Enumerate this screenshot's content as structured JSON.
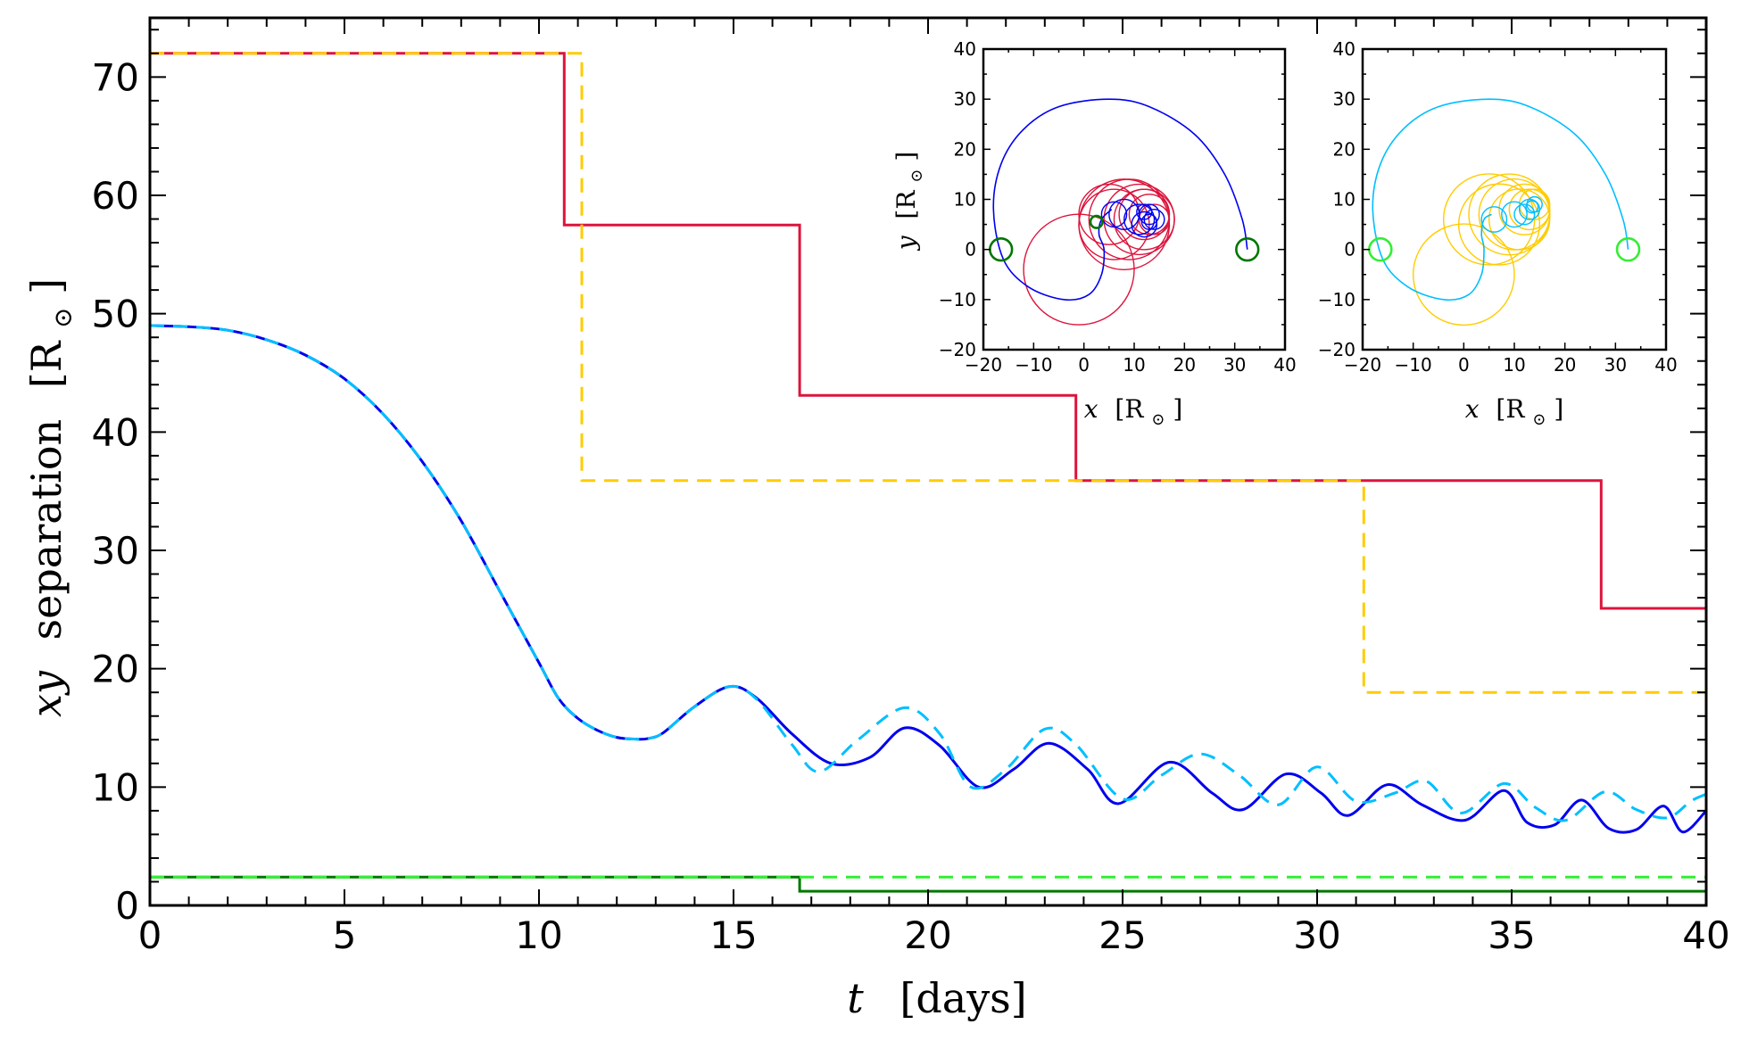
{
  "chart_data": {
    "main": {
      "type": "line",
      "xlabel": {
        "var": "t",
        "unit": "[days]"
      },
      "ylabel": {
        "var": "xy",
        "text": "separation",
        "unit": "[R",
        "sub": "⊙",
        "close": "]"
      },
      "xlim": [
        0,
        40
      ],
      "ylim": [
        0,
        75
      ],
      "xticks": [
        0,
        5,
        10,
        15,
        20,
        25,
        30,
        35,
        40
      ],
      "yticks": [
        0,
        10,
        20,
        30,
        40,
        50,
        60,
        70
      ],
      "colors": {
        "crimson": "#dc143c",
        "gold": "#ffcc00",
        "blue": "#0000ee",
        "cyan": "#00bfff",
        "darkgreen": "#007700",
        "lime": "#33ee33"
      },
      "step_series": [
        {
          "color": "#dc143c",
          "dashed": false,
          "x": [
            0,
            10.65,
            10.65,
            16.7,
            16.7,
            23.8,
            23.8,
            37.3,
            37.3,
            40
          ],
          "y": [
            72,
            72,
            57.5,
            57.5,
            43.1,
            43.1,
            35.9,
            35.9,
            25.1,
            25.1
          ]
        },
        {
          "color": "#ffcc00",
          "dashed": true,
          "x": [
            0,
            11.1,
            11.1,
            31.2,
            31.2,
            40
          ],
          "y": [
            72,
            72,
            35.9,
            35.9,
            18,
            18
          ]
        },
        {
          "color": "#007700",
          "dashed": false,
          "x": [
            0,
            16.7,
            16.7,
            40
          ],
          "y": [
            2.4,
            2.4,
            1.2,
            1.2
          ]
        },
        {
          "color": "#33ee33",
          "dashed": true,
          "x": [
            0,
            40
          ],
          "y": [
            2.4,
            2.4
          ]
        }
      ],
      "separation_series": [
        {
          "color": "#0000ee",
          "dashed": false,
          "x": [
            0,
            1,
            2,
            3,
            4,
            5,
            6,
            7,
            8,
            9,
            10,
            10.5,
            11,
            11.5,
            12,
            12.5,
            12.8,
            13.2,
            14,
            14.9,
            15.6,
            16.5,
            17.5,
            18.5,
            19.4,
            20.3,
            21.3,
            22.2,
            23.1,
            24.1,
            24.9,
            26.2,
            27.3,
            28.1,
            29.2,
            30.1,
            30.8,
            31.8,
            32.7,
            33.8,
            34.8,
            35.4,
            36.1,
            36.8,
            37.5,
            38.2,
            38.9,
            39.4,
            40
          ],
          "y": [
            49,
            48.9,
            48.6,
            47.8,
            46.5,
            44.5,
            41.5,
            37.5,
            32.5,
            26.5,
            20.5,
            17.5,
            15.8,
            14.8,
            14.2,
            14.05,
            14.1,
            14.6,
            16.8,
            18.5,
            17.5,
            14.5,
            12,
            12.5,
            15,
            13.5,
            10,
            11.5,
            13.7,
            11.5,
            8.6,
            12.1,
            9.5,
            8.1,
            11.1,
            9.5,
            7.6,
            10.2,
            8.5,
            7.2,
            9.7,
            7,
            6.8,
            8.9,
            6.5,
            6.4,
            8.4,
            6.2,
            8
          ]
        },
        {
          "color": "#00bfff",
          "dashed": true,
          "x": [
            0,
            1,
            2,
            3,
            4,
            5,
            6,
            7,
            8,
            9,
            10,
            10.5,
            11,
            11.5,
            12,
            12.5,
            12.8,
            13.2,
            14,
            14.9,
            15.6,
            16.5,
            17.2,
            18.2,
            19.4,
            20.3,
            21.1,
            22,
            23,
            23.8,
            25,
            26,
            27,
            28,
            29,
            30,
            31,
            32,
            32.8,
            33.7,
            34.8,
            35.6,
            36.4,
            37.4,
            38.2,
            39,
            39.6,
            40
          ],
          "y": [
            49,
            48.9,
            48.6,
            47.8,
            46.5,
            44.5,
            41.5,
            37.5,
            32.5,
            26.5,
            20.5,
            17.5,
            15.8,
            14.8,
            14.2,
            14.05,
            14.1,
            14.6,
            16.8,
            18.5,
            17.4,
            13.6,
            11.3,
            14,
            16.7,
            14.5,
            10,
            11.5,
            14.9,
            13.6,
            9,
            11,
            12.8,
            11,
            8.5,
            11.7,
            8.8,
            9.5,
            10.5,
            7.8,
            10.3,
            8.3,
            7.2,
            9.6,
            8.1,
            7.4,
            8.8,
            9.4
          ]
        }
      ]
    },
    "insets": [
      {
        "type": "line",
        "xlabel": {
          "var": "x",
          "unit": "[R",
          "sub": "⊙",
          "close": "]"
        },
        "ylabel": {
          "var": "y",
          "unit": "[R",
          "sub": "⊙",
          "close": "]"
        },
        "xlim": [
          -20,
          40
        ],
        "ylim": [
          -20,
          40
        ],
        "xticks": [
          -20,
          -10,
          0,
          10,
          20,
          30,
          40
        ],
        "yticks": [
          -20,
          -10,
          0,
          10,
          20,
          30,
          40
        ],
        "colors": {
          "orbit_a": "#dc143c",
          "orbit_b": "#0000ee",
          "marker": "#007700"
        },
        "circles_a": [
          {
            "cx": 9,
            "cy": 6,
            "r": 8
          },
          {
            "cx": 5,
            "cy": 7,
            "r": 6
          },
          {
            "cx": -1,
            "cy": -4,
            "r": 11
          },
          {
            "cx": 8,
            "cy": 5,
            "r": 9
          },
          {
            "cx": 12,
            "cy": 7,
            "r": 5
          },
          {
            "cx": 12,
            "cy": 6,
            "r": 6
          },
          {
            "cx": 13,
            "cy": 7,
            "r": 4
          },
          {
            "cx": 11,
            "cy": 6,
            "r": 7
          },
          {
            "cx": 14,
            "cy": 6,
            "r": 3
          },
          {
            "cx": 6,
            "cy": 5,
            "r": 7
          }
        ],
        "circles_b": [
          {
            "cx": 8,
            "cy": 7,
            "r": 3
          },
          {
            "cx": 11,
            "cy": 6,
            "r": 3
          },
          {
            "cx": 13,
            "cy": 7,
            "r": 2
          },
          {
            "cx": 12,
            "cy": 5,
            "r": 2.5
          },
          {
            "cx": 14,
            "cy": 6,
            "r": 2
          },
          {
            "cx": 13,
            "cy": 5.5,
            "r": 1.5
          },
          {
            "cx": 6,
            "cy": 7,
            "r": 2.5
          },
          {
            "cx": 12,
            "cy": 7.5,
            "r": 1.5
          }
        ],
        "spiral_b": {
          "x": [
            32.5,
            31.5,
            28,
            22,
            13,
            5,
            -5,
            -12,
            -16.5,
            -18,
            -16,
            -11,
            -4,
            1,
            3.5,
            4,
            3,
            3.5,
            5.5
          ],
          "y": [
            0,
            6,
            15,
            23,
            28.5,
            30,
            28.5,
            24,
            17,
            8,
            -2,
            -7.5,
            -10,
            -9,
            -5,
            0,
            3,
            6,
            8
          ]
        },
        "markers": [
          {
            "x": -16.5,
            "y": 0,
            "r": 2.2
          },
          {
            "x": 32.5,
            "y": 0,
            "r": 2.2
          },
          {
            "x": 2.5,
            "y": 5.5,
            "r": 1.2
          }
        ]
      },
      {
        "type": "line",
        "xlabel": {
          "var": "x",
          "unit": "[R",
          "sub": "⊙",
          "close": "]"
        },
        "ylabel": {
          "var": "",
          "unit": "",
          "sub": "",
          "close": ""
        },
        "xlim": [
          -20,
          40
        ],
        "ylim": [
          -20,
          40
        ],
        "xticks": [
          -20,
          -10,
          0,
          10,
          20,
          30,
          40
        ],
        "yticks": [
          -20,
          -10,
          0,
          10,
          20,
          30,
          40
        ],
        "colors": {
          "orbit_a": "#ffcc00",
          "orbit_b": "#00bfff",
          "marker": "#33ee33"
        },
        "circles_a": [
          {
            "cx": 9,
            "cy": 7,
            "r": 8
          },
          {
            "cx": 5,
            "cy": 6,
            "r": 9
          },
          {
            "cx": 0,
            "cy": -5,
            "r": 10
          },
          {
            "cx": 10,
            "cy": 7,
            "r": 7
          },
          {
            "cx": 12,
            "cy": 8,
            "r": 5
          },
          {
            "cx": 13,
            "cy": 8,
            "r": 4
          },
          {
            "cx": 11,
            "cy": 6,
            "r": 6
          },
          {
            "cx": 14,
            "cy": 9,
            "r": 3
          },
          {
            "cx": 7,
            "cy": 5,
            "r": 8
          }
        ],
        "circles_b": [
          {
            "cx": 6,
            "cy": 6,
            "r": 2.5
          },
          {
            "cx": 10,
            "cy": 7,
            "r": 2.5
          },
          {
            "cx": 13,
            "cy": 8,
            "r": 2
          },
          {
            "cx": 12,
            "cy": 7,
            "r": 2
          },
          {
            "cx": 14,
            "cy": 9,
            "r": 1.5
          },
          {
            "cx": 13.5,
            "cy": 8.5,
            "r": 1.2
          }
        ],
        "spiral_b": {
          "x": [
            32.5,
            31.5,
            28,
            22,
            13,
            5,
            -5,
            -12,
            -16.5,
            -18,
            -16,
            -11,
            -4,
            1,
            3.5,
            4,
            3.5,
            4,
            5.5
          ],
          "y": [
            0,
            6,
            15,
            23,
            28.5,
            30,
            28.5,
            24,
            17,
            8,
            -2,
            -7.5,
            -10,
            -9,
            -5,
            0,
            3,
            6,
            7
          ]
        },
        "markers": [
          {
            "x": -16.5,
            "y": 0,
            "r": 2.2
          },
          {
            "x": 32.5,
            "y": 0,
            "r": 2.2
          }
        ]
      }
    ]
  }
}
